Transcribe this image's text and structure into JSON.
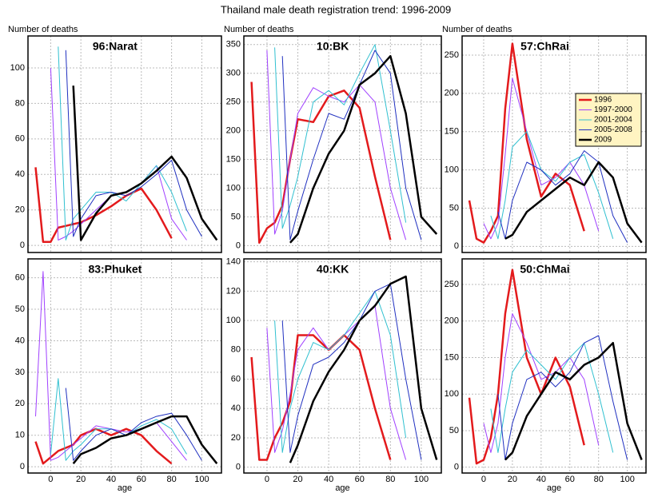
{
  "title": "Thailand male death registration trend: 1996-2009",
  "series_styles": [
    {
      "name": "1996",
      "color": "#e31a1c",
      "width": 2.5
    },
    {
      "name": "1997-2000",
      "color": "#a040ff",
      "width": 1
    },
    {
      "name": "2001-2004",
      "color": "#30c0d0",
      "width": 1
    },
    {
      "name": "2005-2008",
      "color": "#2030c0",
      "width": 1
    },
    {
      "name": "2009",
      "color": "#000000",
      "width": 2.5
    }
  ],
  "chart_data": [
    {
      "type": "line",
      "title": "96:Narat",
      "ylabel": "Number of deaths",
      "x": [
        -10,
        -5,
        0,
        5,
        10,
        15,
        20,
        30,
        40,
        50,
        60,
        70,
        80,
        90,
        100,
        110
      ],
      "xlim": [
        -15,
        113
      ],
      "xticks": [
        0,
        20,
        40,
        60,
        80,
        100
      ],
      "ylim": [
        -4,
        118
      ],
      "yticks": [
        0,
        20,
        40,
        60,
        80,
        100
      ],
      "grid": true,
      "series": [
        {
          "values": [
            44,
            2,
            2,
            10,
            11,
            12,
            13,
            17,
            22,
            28,
            32,
            20,
            4,
            null,
            null,
            null
          ]
        },
        {
          "values": [
            null,
            null,
            100,
            3,
            5,
            8,
            12,
            20,
            28,
            30,
            35,
            45,
            15,
            3,
            null,
            null
          ]
        },
        {
          "values": [
            null,
            null,
            null,
            112,
            3,
            15,
            20,
            30,
            30,
            25,
            35,
            45,
            30,
            8,
            null,
            null
          ]
        },
        {
          "values": [
            null,
            null,
            null,
            null,
            110,
            5,
            15,
            28,
            30,
            28,
            33,
            40,
            48,
            20,
            5,
            null
          ]
        },
        {
          "values": [
            null,
            null,
            null,
            null,
            null,
            90,
            3,
            18,
            28,
            30,
            35,
            42,
            50,
            38,
            15,
            3
          ]
        }
      ]
    },
    {
      "type": "line",
      "title": "10:BK",
      "ylabel": "Number of deaths",
      "x": [
        -10,
        -5,
        0,
        5,
        10,
        15,
        20,
        30,
        40,
        50,
        60,
        70,
        80,
        90,
        100,
        110
      ],
      "xlim": [
        -15,
        113
      ],
      "xticks": [
        0,
        20,
        40,
        60,
        80,
        100
      ],
      "ylim": [
        -12,
        365
      ],
      "yticks": [
        0,
        50,
        100,
        150,
        200,
        250,
        300,
        350
      ],
      "grid": true,
      "series": [
        {
          "values": [
            285,
            5,
            30,
            40,
            70,
            150,
            220,
            215,
            260,
            270,
            240,
            120,
            10,
            null,
            null,
            null
          ]
        },
        {
          "values": [
            null,
            null,
            340,
            20,
            60,
            150,
            230,
            275,
            260,
            250,
            280,
            250,
            100,
            10,
            null,
            null
          ]
        },
        {
          "values": [
            null,
            null,
            null,
            345,
            30,
            70,
            120,
            250,
            270,
            245,
            300,
            350,
            200,
            40,
            null,
            null
          ]
        },
        {
          "values": [
            null,
            null,
            null,
            null,
            330,
            10,
            60,
            150,
            230,
            220,
            280,
            340,
            300,
            100,
            10,
            null
          ]
        },
        {
          "values": [
            null,
            null,
            null,
            null,
            null,
            5,
            20,
            100,
            160,
            200,
            280,
            300,
            330,
            230,
            50,
            20
          ]
        }
      ]
    },
    {
      "type": "line",
      "title": "57:ChRai",
      "ylabel": "Number of deaths",
      "legend": "top-right",
      "x": [
        -10,
        -5,
        0,
        5,
        10,
        15,
        20,
        30,
        40,
        50,
        60,
        70,
        80,
        90,
        100,
        110
      ],
      "xlim": [
        -15,
        113
      ],
      "xticks": [
        0,
        20,
        40,
        60,
        80,
        100
      ],
      "ylim": [
        -8,
        275
      ],
      "yticks": [
        0,
        50,
        100,
        150,
        200,
        250
      ],
      "grid": true,
      "series": [
        {
          "values": [
            60,
            10,
            5,
            20,
            40,
            180,
            265,
            140,
            65,
            95,
            80,
            20,
            null,
            null,
            null,
            null
          ]
        },
        {
          "values": [
            null,
            null,
            30,
            10,
            30,
            120,
            220,
            150,
            80,
            90,
            110,
            80,
            20,
            null,
            null,
            null
          ]
        },
        {
          "values": [
            null,
            null,
            null,
            40,
            10,
            60,
            130,
            150,
            100,
            85,
            110,
            120,
            70,
            10,
            null,
            null
          ]
        },
        {
          "values": [
            null,
            null,
            null,
            null,
            45,
            10,
            60,
            110,
            100,
            80,
            95,
            125,
            110,
            40,
            5,
            null
          ]
        },
        {
          "values": [
            null,
            null,
            null,
            null,
            null,
            10,
            15,
            45,
            60,
            75,
            90,
            80,
            110,
            90,
            30,
            5
          ]
        }
      ]
    },
    {
      "type": "line",
      "title": "83:Phuket",
      "xlabel": "age",
      "x": [
        -10,
        -5,
        0,
        5,
        10,
        15,
        20,
        30,
        40,
        50,
        60,
        70,
        80,
        90,
        100,
        110
      ],
      "xlim": [
        -15,
        113
      ],
      "xticks": [
        0,
        20,
        40,
        60,
        80,
        100
      ],
      "ylim": [
        -2,
        66
      ],
      "yticks": [
        0,
        10,
        20,
        30,
        40,
        50,
        60
      ],
      "grid": true,
      "series": [
        {
          "values": [
            8,
            1,
            3,
            5,
            6,
            7,
            10,
            12,
            10,
            12,
            10,
            5,
            1,
            null,
            null,
            null
          ]
        },
        {
          "values": [
            16,
            62,
            2,
            3,
            5,
            7,
            9,
            13,
            12,
            11,
            12,
            14,
            8,
            2,
            null,
            null
          ]
        },
        {
          "values": [
            null,
            null,
            4,
            28,
            2,
            5,
            7,
            12,
            12,
            10,
            13,
            15,
            12,
            4,
            null,
            null
          ]
        },
        {
          "values": [
            null,
            null,
            null,
            null,
            25,
            2,
            5,
            10,
            12,
            10,
            14,
            16,
            17,
            10,
            2,
            null
          ]
        },
        {
          "values": [
            null,
            null,
            null,
            null,
            null,
            1,
            4,
            6,
            9,
            10,
            12,
            14,
            16,
            16,
            7,
            1
          ]
        }
      ]
    },
    {
      "type": "line",
      "title": "40:KK",
      "xlabel": "age",
      "x": [
        -10,
        -5,
        0,
        5,
        10,
        15,
        20,
        30,
        40,
        50,
        60,
        70,
        80,
        90,
        100,
        110
      ],
      "xlim": [
        -15,
        113
      ],
      "xticks": [
        0,
        20,
        40,
        60,
        80,
        100
      ],
      "ylim": [
        -4,
        142
      ],
      "yticks": [
        0,
        20,
        40,
        60,
        80,
        100,
        120,
        140
      ],
      "grid": true,
      "series": [
        {
          "values": [
            75,
            5,
            5,
            20,
            30,
            45,
            90,
            90,
            80,
            90,
            80,
            40,
            5,
            null,
            null,
            null
          ]
        },
        {
          "values": [
            null,
            null,
            95,
            10,
            25,
            50,
            80,
            95,
            80,
            90,
            100,
            110,
            40,
            5,
            null,
            null
          ]
        },
        {
          "values": [
            null,
            null,
            null,
            100,
            10,
            40,
            60,
            85,
            80,
            90,
            105,
            120,
            90,
            20,
            null,
            null
          ]
        },
        {
          "values": [
            null,
            null,
            null,
            null,
            100,
            10,
            35,
            70,
            75,
            85,
            100,
            120,
            125,
            60,
            5,
            null
          ]
        },
        {
          "values": [
            null,
            null,
            null,
            null,
            null,
            3,
            15,
            45,
            65,
            80,
            100,
            110,
            125,
            130,
            40,
            5
          ]
        }
      ]
    },
    {
      "type": "line",
      "title": "50:ChMai",
      "xlabel": "age",
      "x": [
        -10,
        -5,
        0,
        5,
        10,
        15,
        20,
        30,
        40,
        50,
        60,
        70,
        80,
        90,
        100,
        110
      ],
      "xlim": [
        -15,
        113
      ],
      "xticks": [
        0,
        20,
        40,
        60,
        80,
        100
      ],
      "ylim": [
        -8,
        285
      ],
      "yticks": [
        0,
        50,
        100,
        150,
        200,
        250
      ],
      "grid": true,
      "series": [
        {
          "values": [
            95,
            5,
            10,
            40,
            100,
            210,
            270,
            150,
            100,
            150,
            110,
            30,
            null,
            null,
            null,
            null
          ]
        },
        {
          "values": [
            null,
            null,
            60,
            20,
            60,
            150,
            210,
            170,
            120,
            130,
            150,
            120,
            30,
            null,
            null,
            null
          ]
        },
        {
          "values": [
            null,
            null,
            null,
            80,
            20,
            80,
            130,
            160,
            140,
            120,
            150,
            170,
            100,
            20,
            null,
            null
          ]
        },
        {
          "values": [
            null,
            null,
            null,
            null,
            100,
            10,
            60,
            120,
            130,
            110,
            130,
            170,
            180,
            90,
            10,
            null
          ]
        },
        {
          "values": [
            null,
            null,
            null,
            null,
            null,
            10,
            20,
            70,
            100,
            130,
            120,
            140,
            150,
            170,
            60,
            10
          ]
        }
      ]
    }
  ]
}
